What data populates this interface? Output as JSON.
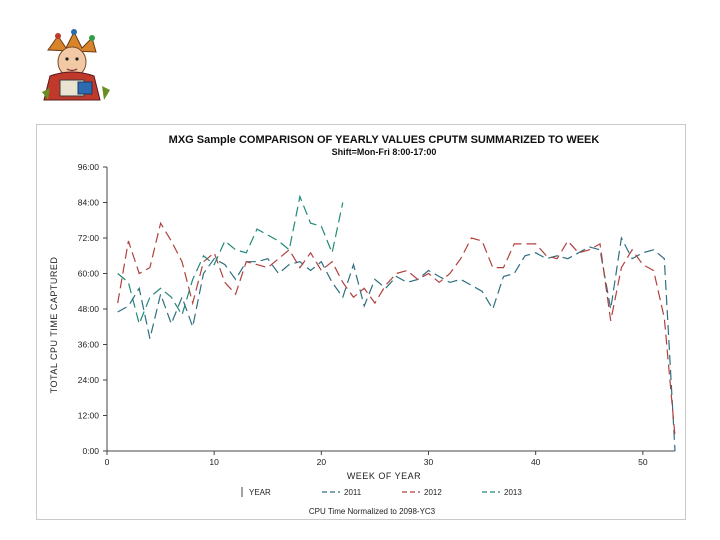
{
  "colors": {
    "series_2011": "#2f6f7f",
    "series_2012": "#b0413e",
    "series_2013": "#1f8a78"
  },
  "logo": {
    "icon": "jester-clipart-icon"
  },
  "chart_data": {
    "type": "line",
    "title": "MXG Sample COMPARISON OF YEARLY VALUES CPUTM SUMMARIZED TO WEEK",
    "subtitle": "Shift=Mon-Fri 8:00-17:00",
    "xlabel": "WEEK OF YEAR",
    "ylabel": "TOTAL CPU TIME CAPTURED",
    "xlim": [
      0,
      53
    ],
    "ylim": [
      0,
      96
    ],
    "x_ticks": [
      0,
      10,
      20,
      30,
      40,
      50
    ],
    "x_tick_labels": [
      "0",
      "10",
      "20",
      "30",
      "40",
      "50"
    ],
    "y_ticks": [
      0,
      12,
      24,
      36,
      48,
      60,
      72,
      84,
      96
    ],
    "y_tick_labels": [
      "0:00",
      "12:00",
      "24:00",
      "36:00",
      "48:00",
      "60:00",
      "72:00",
      "84:00",
      "96:00"
    ],
    "grid": false,
    "legend_title": "YEAR",
    "legend_position": "bottom",
    "footnote": "CPU Time Normalized to 2098-YC3",
    "series": [
      {
        "name": "2011",
        "dash": "10,5",
        "x": [
          1,
          2,
          3,
          4,
          5,
          6,
          7,
          8,
          9,
          10,
          11,
          12,
          13,
          14,
          15,
          16,
          17,
          18,
          19,
          20,
          21,
          22,
          23,
          24,
          25,
          26,
          27,
          28,
          29,
          30,
          31,
          32,
          33,
          34,
          35,
          36,
          37,
          38,
          39,
          40,
          41,
          42,
          43,
          44,
          45,
          46,
          47,
          48,
          49,
          50,
          51,
          52,
          53
        ],
        "values": [
          47,
          49,
          55,
          38,
          53,
          43,
          52,
          42,
          60,
          65,
          63,
          58,
          64,
          64,
          65,
          60,
          63,
          64,
          61,
          64,
          57,
          52,
          63,
          49,
          58,
          55,
          59,
          57,
          58,
          61,
          59,
          57,
          58,
          56,
          54,
          48,
          59,
          60,
          66,
          67,
          65,
          66,
          65,
          67,
          69,
          68,
          48,
          72,
          65,
          67,
          68,
          65,
          0
        ]
      },
      {
        "name": "2012",
        "dash": "10,5",
        "x": [
          1,
          2,
          3,
          4,
          5,
          6,
          7,
          8,
          9,
          10,
          11,
          12,
          13,
          14,
          15,
          16,
          17,
          18,
          19,
          20,
          21,
          22,
          23,
          24,
          25,
          26,
          27,
          28,
          29,
          30,
          31,
          32,
          33,
          34,
          35,
          36,
          37,
          38,
          39,
          40,
          41,
          42,
          43,
          44,
          45,
          46,
          47,
          48,
          49,
          50,
          51,
          52,
          53
        ],
        "values": [
          50,
          71,
          60,
          62,
          77,
          71,
          64,
          50,
          64,
          67,
          57,
          53,
          64,
          63,
          62,
          65,
          68,
          62,
          67,
          61,
          64,
          57,
          52,
          55,
          50,
          56,
          60,
          61,
          58,
          60,
          57,
          60,
          65,
          72,
          71,
          62,
          62,
          70,
          70,
          70,
          66,
          65,
          71,
          67,
          68,
          70,
          44,
          62,
          68,
          63,
          61,
          45,
          5
        ]
      },
      {
        "name": "2013",
        "dash": "10,5",
        "x": [
          1,
          2,
          3,
          4,
          5,
          6,
          7,
          8,
          9,
          10,
          11,
          12,
          13,
          14,
          15,
          16,
          17,
          18,
          19,
          20,
          21,
          22
        ],
        "values": [
          60,
          57,
          43,
          52,
          55,
          52,
          46,
          58,
          66,
          63,
          71,
          68,
          67,
          75,
          73,
          71,
          68,
          86,
          77,
          76,
          67,
          84
        ]
      }
    ]
  }
}
